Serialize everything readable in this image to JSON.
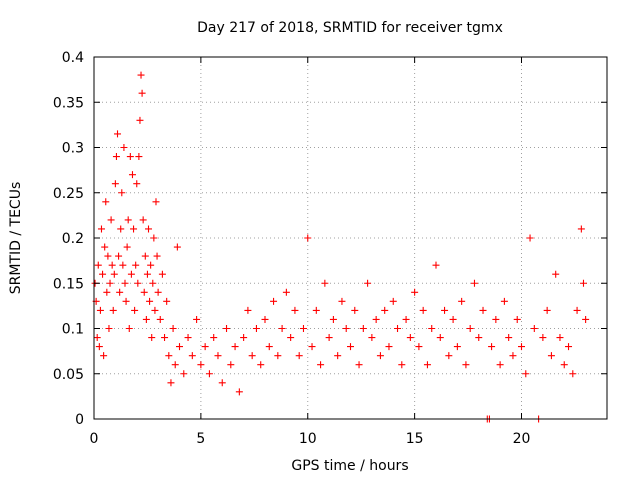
{
  "chart_data": {
    "type": "scatter",
    "title": "Day 217 of 2018, SRMTID for receiver tgmx",
    "xlabel": "GPS time / hours",
    "ylabel": "SRMTID / TECUs",
    "xlim": [
      0,
      24
    ],
    "ylim": [
      0,
      0.4
    ],
    "xticks": [
      0,
      5,
      10,
      15,
      20
    ],
    "xtick_labels": [
      "0",
      "5",
      "10",
      "15",
      "20"
    ],
    "yticks": [
      0,
      0.05,
      0.1,
      0.15,
      0.2,
      0.25,
      0.3,
      0.35,
      0.4
    ],
    "ytick_labels": [
      "0",
      "0.05",
      "0.1",
      "0.15",
      "0.2",
      "0.25",
      "0.3",
      "0.35",
      "0.4"
    ],
    "grid": true,
    "marker": "+",
    "color": "#ff0000",
    "series": [
      {
        "name": "SRMTID",
        "points": [
          [
            0.05,
            0.15
          ],
          [
            0.1,
            0.13
          ],
          [
            0.15,
            0.09
          ],
          [
            0.2,
            0.17
          ],
          [
            0.25,
            0.08
          ],
          [
            0.3,
            0.12
          ],
          [
            0.35,
            0.21
          ],
          [
            0.4,
            0.16
          ],
          [
            0.45,
            0.07
          ],
          [
            0.5,
            0.19
          ],
          [
            0.55,
            0.24
          ],
          [
            0.6,
            0.14
          ],
          [
            0.65,
            0.18
          ],
          [
            0.7,
            0.1
          ],
          [
            0.75,
            0.15
          ],
          [
            0.8,
            0.22
          ],
          [
            0.85,
            0.17
          ],
          [
            0.9,
            0.12
          ],
          [
            0.95,
            0.16
          ],
          [
            1.0,
            0.26
          ],
          [
            1.05,
            0.29
          ],
          [
            1.1,
            0.315
          ],
          [
            1.15,
            0.18
          ],
          [
            1.2,
            0.14
          ],
          [
            1.25,
            0.21
          ],
          [
            1.3,
            0.25
          ],
          [
            1.35,
            0.17
          ],
          [
            1.4,
            0.3
          ],
          [
            1.45,
            0.15
          ],
          [
            1.5,
            0.13
          ],
          [
            1.55,
            0.19
          ],
          [
            1.6,
            0.22
          ],
          [
            1.65,
            0.1
          ],
          [
            1.7,
            0.29
          ],
          [
            1.75,
            0.16
          ],
          [
            1.8,
            0.27
          ],
          [
            1.85,
            0.21
          ],
          [
            1.9,
            0.12
          ],
          [
            1.95,
            0.17
          ],
          [
            2.0,
            0.26
          ],
          [
            2.05,
            0.15
          ],
          [
            2.1,
            0.29
          ],
          [
            2.15,
            0.33
          ],
          [
            2.2,
            0.38
          ],
          [
            2.25,
            0.36
          ],
          [
            2.3,
            0.22
          ],
          [
            2.35,
            0.14
          ],
          [
            2.4,
            0.18
          ],
          [
            2.45,
            0.11
          ],
          [
            2.5,
            0.16
          ],
          [
            2.55,
            0.21
          ],
          [
            2.6,
            0.13
          ],
          [
            2.65,
            0.17
          ],
          [
            2.7,
            0.09
          ],
          [
            2.75,
            0.15
          ],
          [
            2.8,
            0.2
          ],
          [
            2.85,
            0.12
          ],
          [
            2.9,
            0.24
          ],
          [
            2.95,
            0.18
          ],
          [
            3.0,
            0.14
          ],
          [
            3.1,
            0.11
          ],
          [
            3.2,
            0.16
          ],
          [
            3.3,
            0.09
          ],
          [
            3.4,
            0.13
          ],
          [
            3.5,
            0.07
          ],
          [
            3.6,
            0.04
          ],
          [
            3.7,
            0.1
          ],
          [
            3.8,
            0.06
          ],
          [
            3.9,
            0.19
          ],
          [
            4.0,
            0.08
          ],
          [
            4.2,
            0.05
          ],
          [
            4.4,
            0.09
          ],
          [
            4.6,
            0.07
          ],
          [
            4.8,
            0.11
          ],
          [
            5.0,
            0.06
          ],
          [
            5.2,
            0.08
          ],
          [
            5.4,
            0.05
          ],
          [
            5.6,
            0.09
          ],
          [
            5.8,
            0.07
          ],
          [
            6.0,
            0.04
          ],
          [
            6.2,
            0.1
          ],
          [
            6.4,
            0.06
          ],
          [
            6.6,
            0.08
          ],
          [
            6.8,
            0.03
          ],
          [
            7.0,
            0.09
          ],
          [
            7.2,
            0.12
          ],
          [
            7.4,
            0.07
          ],
          [
            7.6,
            0.1
          ],
          [
            7.8,
            0.06
          ],
          [
            8.0,
            0.11
          ],
          [
            8.2,
            0.08
          ],
          [
            8.4,
            0.13
          ],
          [
            8.6,
            0.07
          ],
          [
            8.8,
            0.1
          ],
          [
            9.0,
            0.14
          ],
          [
            9.2,
            0.09
          ],
          [
            9.4,
            0.12
          ],
          [
            9.6,
            0.07
          ],
          [
            9.8,
            0.1
          ],
          [
            10.0,
            0.2
          ],
          [
            10.2,
            0.08
          ],
          [
            10.4,
            0.12
          ],
          [
            10.6,
            0.06
          ],
          [
            10.8,
            0.15
          ],
          [
            11.0,
            0.09
          ],
          [
            11.2,
            0.11
          ],
          [
            11.4,
            0.07
          ],
          [
            11.6,
            0.13
          ],
          [
            11.8,
            0.1
          ],
          [
            12.0,
            0.08
          ],
          [
            12.2,
            0.12
          ],
          [
            12.4,
            0.06
          ],
          [
            12.6,
            0.1
          ],
          [
            12.8,
            0.15
          ],
          [
            13.0,
            0.09
          ],
          [
            13.2,
            0.11
          ],
          [
            13.4,
            0.07
          ],
          [
            13.6,
            0.12
          ],
          [
            13.8,
            0.08
          ],
          [
            14.0,
            0.13
          ],
          [
            14.2,
            0.1
          ],
          [
            14.4,
            0.06
          ],
          [
            14.6,
            0.11
          ],
          [
            14.8,
            0.09
          ],
          [
            15.0,
            0.14
          ],
          [
            15.2,
            0.08
          ],
          [
            15.4,
            0.12
          ],
          [
            15.6,
            0.06
          ],
          [
            15.8,
            0.1
          ],
          [
            16.0,
            0.17
          ],
          [
            16.2,
            0.09
          ],
          [
            16.4,
            0.12
          ],
          [
            16.6,
            0.07
          ],
          [
            16.8,
            0.11
          ],
          [
            17.0,
            0.08
          ],
          [
            17.2,
            0.13
          ],
          [
            17.4,
            0.06
          ],
          [
            17.6,
            0.1
          ],
          [
            17.8,
            0.15
          ],
          [
            18.0,
            0.09
          ],
          [
            18.2,
            0.12
          ],
          [
            18.4,
            0.0
          ],
          [
            18.5,
            0.0
          ],
          [
            18.6,
            0.08
          ],
          [
            18.8,
            0.11
          ],
          [
            19.0,
            0.06
          ],
          [
            19.2,
            0.13
          ],
          [
            19.4,
            0.09
          ],
          [
            19.6,
            0.07
          ],
          [
            19.8,
            0.11
          ],
          [
            20.0,
            0.08
          ],
          [
            20.2,
            0.05
          ],
          [
            20.4,
            0.2
          ],
          [
            20.6,
            0.1
          ],
          [
            20.8,
            0.0
          ],
          [
            21.0,
            0.09
          ],
          [
            21.2,
            0.12
          ],
          [
            21.4,
            0.07
          ],
          [
            21.6,
            0.16
          ],
          [
            21.8,
            0.09
          ],
          [
            22.0,
            0.06
          ],
          [
            22.2,
            0.08
          ],
          [
            22.4,
            0.05
          ],
          [
            22.6,
            0.12
          ],
          [
            22.8,
            0.21
          ],
          [
            22.9,
            0.15
          ],
          [
            23.0,
            0.11
          ]
        ]
      }
    ]
  }
}
